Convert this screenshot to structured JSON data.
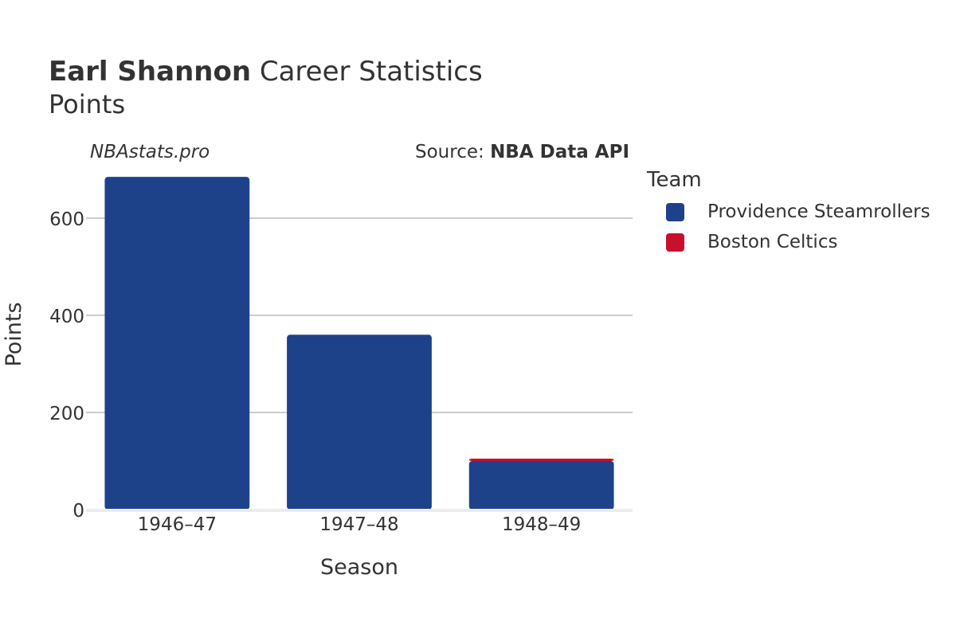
{
  "title": {
    "bold": "Earl Shannon",
    "rest": " Career Statistics"
  },
  "subtitle": "Points",
  "watermark": "NBAstats.pro",
  "source": {
    "prefix": "Source: ",
    "name": "NBA Data API"
  },
  "legend": {
    "title": "Team",
    "items": [
      {
        "label": "Providence Steamrollers",
        "color": "#1d428a"
      },
      {
        "label": "Boston Celtics",
        "color": "#c8102e"
      }
    ]
  },
  "chart_data": {
    "type": "bar",
    "stacked": true,
    "categories": [
      "1946–47",
      "1947–48",
      "1948–49"
    ],
    "series": [
      {
        "name": "Providence Steamrollers",
        "color": "#1d428a",
        "values": [
          685,
          360,
          100
        ]
      },
      {
        "name": "Boston Celtics",
        "color": "#c8102e",
        "values": [
          0,
          0,
          5
        ]
      }
    ],
    "xlabel": "Season",
    "ylabel": "Points",
    "ylim": [
      0,
      720
    ],
    "yticks": [
      0,
      200,
      400,
      600
    ],
    "grid": true
  }
}
